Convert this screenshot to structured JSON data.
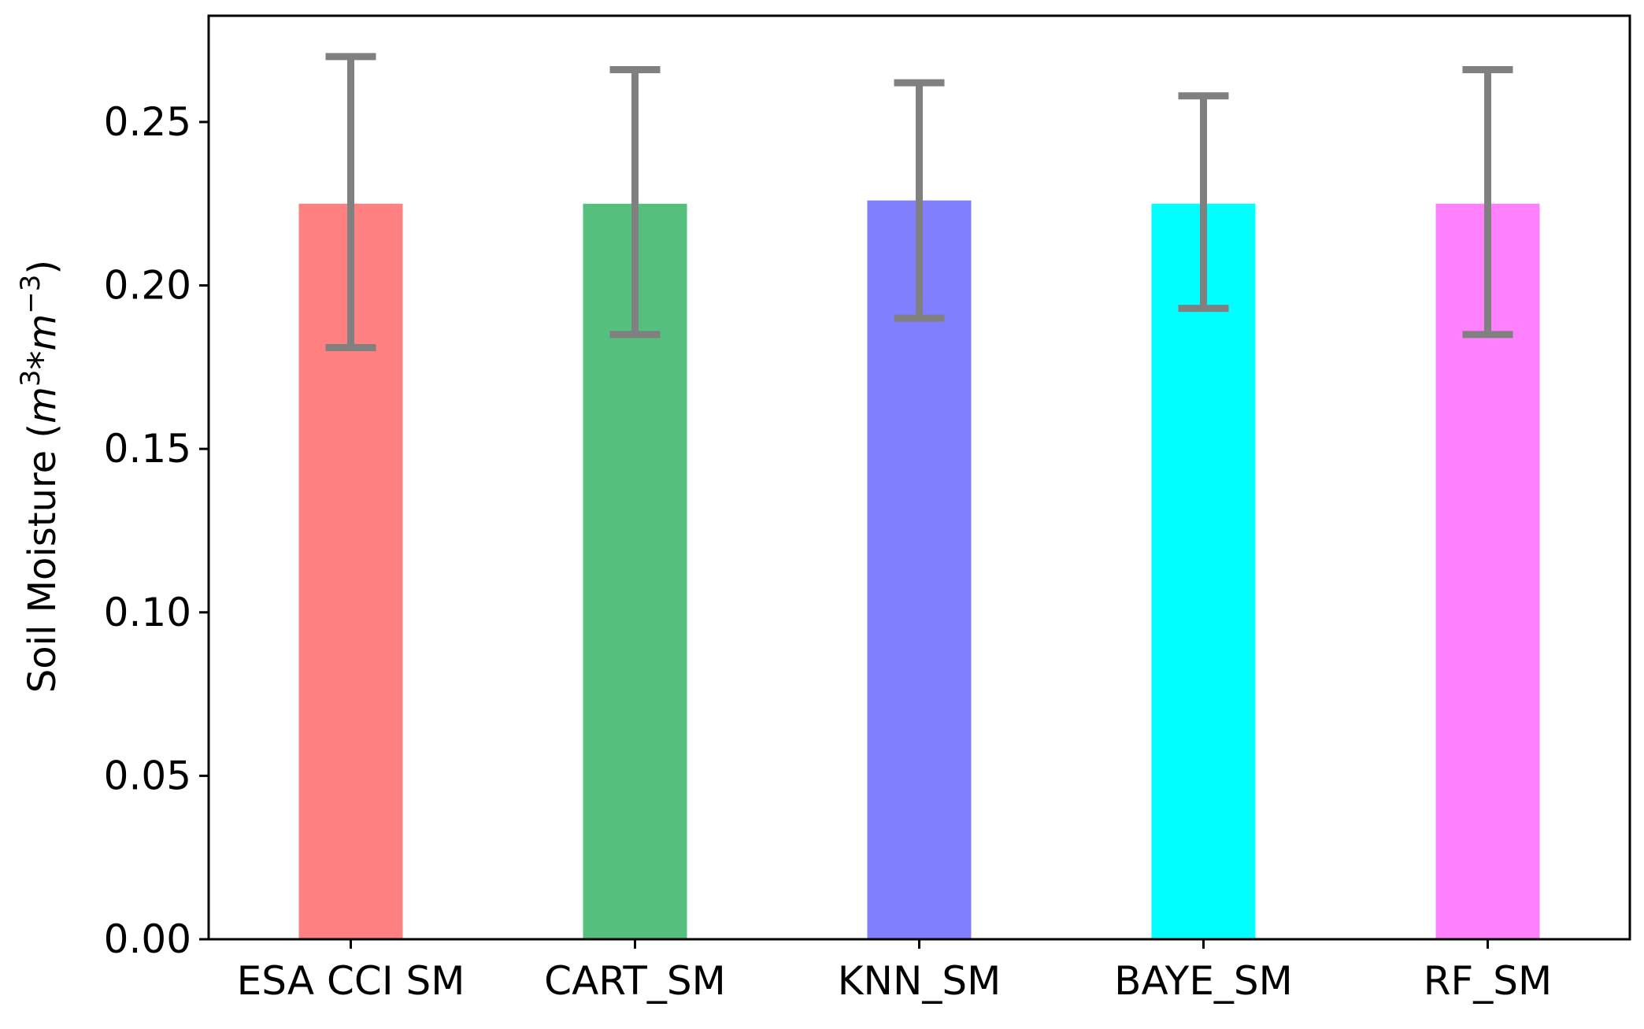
{
  "chart_data": {
    "type": "bar",
    "categories": [
      "ESA CCI SM",
      "CART_SM",
      "KNN_SM",
      "BAYE_SM",
      "RF_SM"
    ],
    "values": [
      0.225,
      0.225,
      0.226,
      0.225,
      0.225
    ],
    "error_low": [
      0.181,
      0.185,
      0.19,
      0.193,
      0.185
    ],
    "error_high": [
      0.27,
      0.266,
      0.262,
      0.258,
      0.266
    ],
    "colors": [
      "#ff8080",
      "#55bf7d",
      "#8080ff",
      "#00ffff",
      "#ff80ff"
    ],
    "error_color": "#808080",
    "ylabel": {
      "prefix": "Soil Moisture (",
      "m1": "m",
      "exp1": "3",
      "star": "*",
      "m2": "m",
      "exp2": "−3",
      "suffix": ")"
    },
    "ylim": [
      0,
      0.2825
    ],
    "yticks": [
      0.0,
      0.05,
      0.1,
      0.15,
      0.2,
      0.25
    ],
    "ytick_labels": [
      "0.00",
      "0.05",
      "0.10",
      "0.15",
      "0.20",
      "0.25"
    ],
    "grid": false,
    "legend": "none"
  }
}
